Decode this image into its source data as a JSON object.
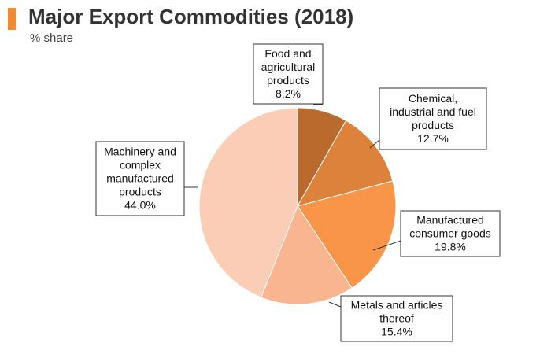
{
  "header": {
    "title": "Major Export Commodities (2018)",
    "subtitle": "% share",
    "accent_color": "#f28b30"
  },
  "chart_data": {
    "type": "pie",
    "start_angle_deg": 0,
    "direction": "clockwise",
    "slices": [
      {
        "label_lines": [
          "Food and",
          "agricultural",
          "products",
          "8.2%"
        ],
        "value": 8.2,
        "color": "#bb6a2e"
      },
      {
        "label_lines": [
          "Chemical,",
          "industrial and fuel",
          "products",
          "12.7%"
        ],
        "value": 12.7,
        "color": "#dc823b"
      },
      {
        "label_lines": [
          "Manufactured",
          "consumer goods",
          "19.8%"
        ],
        "value": 19.8,
        "color": "#f99548"
      },
      {
        "label_lines": [
          "Metals and articles",
          "thereof",
          "15.4%"
        ],
        "value": 15.4,
        "color": "#f9b590"
      },
      {
        "label_lines": [
          "Machinery and",
          "complex",
          "manufactured",
          "products",
          "44.0%"
        ],
        "value": 44.0,
        "color": "#fbcdb6"
      }
    ]
  }
}
